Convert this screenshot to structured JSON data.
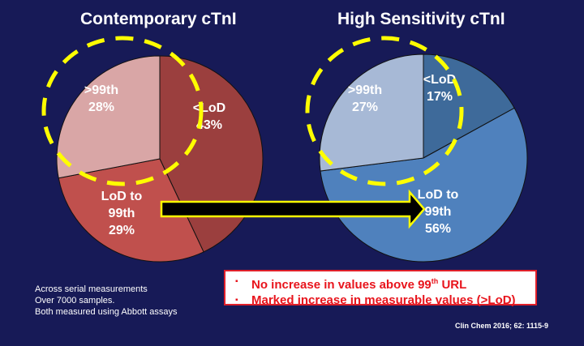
{
  "chart_data": [
    {
      "type": "pie",
      "title": "Contemporary cTnI",
      "categories": [
        "<LoD",
        "LoD to 99th",
        ">99th"
      ],
      "values": [
        43,
        29,
        28
      ],
      "unit": "%",
      "colors": [
        "#9b3f3e",
        "#c0504d",
        "#d9a6a6"
      ],
      "labels": [
        {
          "lines": [
            "<LoD",
            "43%"
          ]
        },
        {
          "lines": [
            "LoD to",
            "99th",
            "29%"
          ]
        },
        {
          "lines": [
            ">99th",
            "28%"
          ]
        }
      ],
      "highlighted": ">99th",
      "start": "12 o'clock, clockwise"
    },
    {
      "type": "pie",
      "title": "High Sensitivity cTnI",
      "categories": [
        "<LoD",
        "LoD to 99th",
        ">99th"
      ],
      "values": [
        17,
        56,
        27
      ],
      "unit": "%",
      "colors": [
        "#3e6a9a",
        "#4f81bd",
        "#a7b9d6"
      ],
      "labels": [
        {
          "lines": [
            "<LoD",
            "17%"
          ]
        },
        {
          "lines": [
            "LoD to",
            "99th",
            "56%"
          ]
        },
        {
          "lines": [
            ">99th",
            "27%"
          ]
        }
      ],
      "highlighted": ">99th",
      "start": "12 o'clock, clockwise"
    }
  ],
  "titles": {
    "left": "Contemporary cTnI",
    "right": "High Sensitivity cTnI"
  },
  "notes": [
    "Across serial measurements",
    "Over 7000 samples.",
    "Both measured using Abbott assays"
  ],
  "callout": {
    "bullet": "▪",
    "item1_pre": "No increase in values above 99",
    "item1_sup": "th",
    "item1_post": " URL",
    "item2": "Marked increase in measurable values (>LoD)"
  },
  "citation": "Clin Chem 2016; 62: 1115-9",
  "colors": {
    "background": "#171a57",
    "highlight_dash": "#ffff00",
    "callout_text": "#e8141c",
    "arrow_fill": "#000000"
  }
}
